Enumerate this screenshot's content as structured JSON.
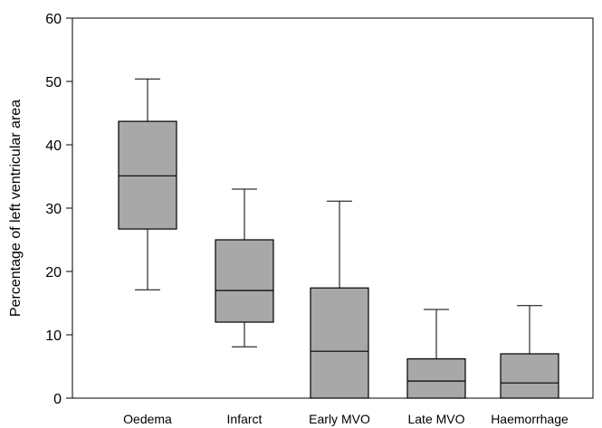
{
  "chart_data": {
    "type": "boxplot",
    "title": "",
    "xlabel": "",
    "ylabel": "Percentage of left ventricular area",
    "ylim": [
      0,
      60
    ],
    "yticks": [
      0,
      10,
      20,
      30,
      40,
      50,
      60
    ],
    "categories": [
      "Oedema",
      "Infarct",
      "Early MVO",
      "Late MVO",
      "Haemorrhage"
    ],
    "boxes": [
      {
        "label": "Oedema",
        "whisker_low": 17.1,
        "q1": 26.7,
        "median": 35.1,
        "q3": 43.7,
        "whisker_high": 50.4
      },
      {
        "label": "Infarct",
        "whisker_low": 8.1,
        "q1": 12.0,
        "median": 17.0,
        "q3": 25.0,
        "whisker_high": 33.0
      },
      {
        "label": "Early MVO",
        "whisker_low": 0,
        "q1": 0,
        "median": 7.4,
        "q3": 17.4,
        "whisker_high": 31.1
      },
      {
        "label": "Late MVO",
        "whisker_low": 0,
        "q1": 0,
        "median": 2.7,
        "q3": 6.2,
        "whisker_high": 14.0
      },
      {
        "label": "Haemorrhage",
        "whisker_low": 0,
        "q1": 0,
        "median": 2.4,
        "q3": 7.0,
        "whisker_high": 14.6
      }
    ],
    "box_fill": "#a8a8a8",
    "grid": false,
    "legend": "none"
  }
}
